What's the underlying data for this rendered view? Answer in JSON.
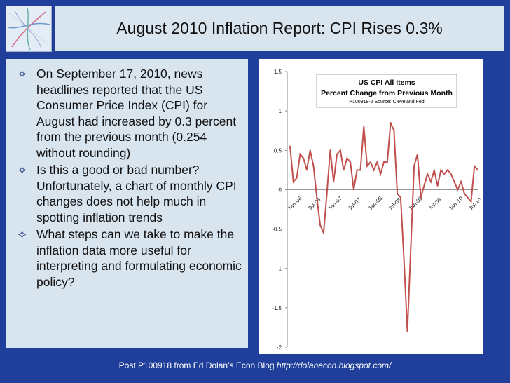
{
  "title": "August 2010 Inflation Report: CPI Rises 0.3%",
  "bullets": [
    "On September 17, 2010, news headlines reported that the US Consumer Price Index (CPI) for August had increased by 0.3 percent from the previous month (0.254 without rounding)",
    "Is this a good or bad number? Unfortunately, a chart of monthly CPI changes does not help much in spotting inflation trends",
    "What steps can we take to make the inflation data more useful for interpreting and formulating economic policy?"
  ],
  "footer": {
    "text": "Post P100918 from Ed Dolan’s Econ Blog ",
    "url": "http://dolanecon.blogspot.com/"
  },
  "chart_data": {
    "type": "line",
    "title": "US CPI All Items",
    "subtitle": "Percent Change from Previous Month",
    "note": "P100918-2 Source: Cleveland Fed",
    "ylim": [
      -2,
      1.5
    ],
    "yticks": [
      "1.5",
      "1",
      "0.5",
      "0",
      "-0.5",
      "-1",
      "-1.5",
      "-2"
    ],
    "xticks": [
      "Jan-06",
      "Jul-06",
      "Jan-07",
      "Jul-07",
      "Jan-08",
      "Jul-08",
      "Jan-09",
      "Jul-09",
      "Jan-10",
      "Jul-10"
    ],
    "line_color": "#c0504d",
    "series": [
      {
        "values": [
          0.55,
          0.1,
          0.15,
          0.45,
          0.4,
          0.25,
          0.5,
          0.3,
          -0.1,
          -0.45,
          -0.55,
          -0.05,
          0.5,
          0.1,
          0.45,
          0.5,
          0.25,
          0.4,
          0.35,
          0.0,
          0.25,
          0.25,
          0.8,
          0.3,
          0.35,
          0.25,
          0.35,
          0.2,
          0.35,
          0.35,
          0.85,
          0.75,
          -0.05,
          -0.1,
          -0.9,
          -1.8,
          -0.75,
          0.3,
          0.45,
          -0.1,
          0.05,
          0.2,
          0.1,
          0.25,
          0.05,
          0.25,
          0.2,
          0.25,
          0.2,
          0.1,
          0.0,
          0.1,
          -0.05,
          -0.1,
          -0.15,
          0.3,
          0.25
        ]
      }
    ]
  }
}
